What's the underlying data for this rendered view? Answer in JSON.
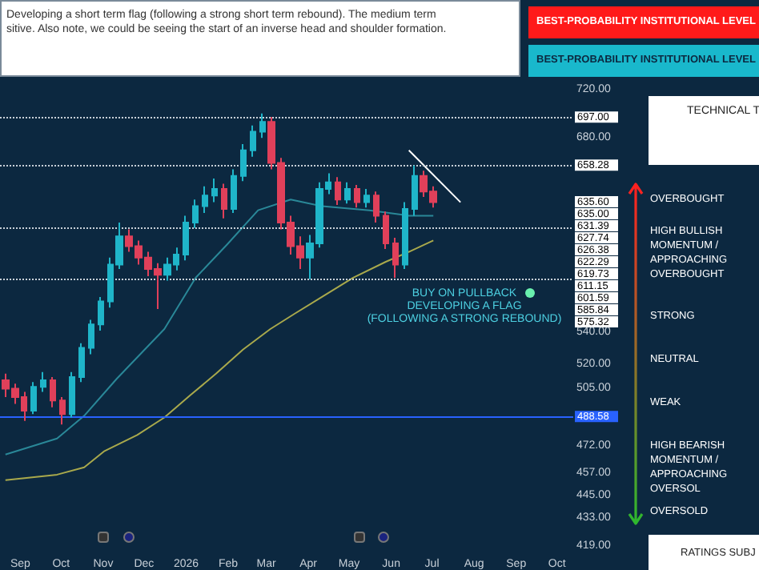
{
  "chart_data": [
    {
      "type": "candlestick",
      "title": "Developing a short term flag (following a strong short term rebound). The medium term",
      "subtitle": "sitive. Also note, we could be seeing the start of an inverse head and shoulder formation.",
      "x": [
        "2025-08-21",
        "2025-08-28",
        "2025-09-04",
        "2025-09-11",
        "2025-09-18",
        "2025-09-25",
        "2025-10-02",
        "2025-10-09",
        "2025-10-16",
        "2025-10-23",
        "2025-10-30",
        "2025-11-06",
        "2025-11-13",
        "2025-11-20",
        "2025-11-27",
        "2025-12-04",
        "2025-12-11",
        "2025-12-18",
        "2025-12-25",
        "2026-01-01",
        "2026-01-08",
        "2026-01-15",
        "2026-01-22",
        "2026-01-29",
        "2026-02-05",
        "2026-02-12",
        "2026-02-19",
        "2026-02-26",
        "2026-03-05",
        "2026-03-12",
        "2026-03-19",
        "2026-03-26",
        "2026-04-02",
        "2026-04-09",
        "2026-04-16",
        "2026-04-23",
        "2026-04-30",
        "2026-05-07",
        "2026-05-14",
        "2026-05-21",
        "2026-05-28",
        "2026-06-04",
        "2026-06-11",
        "2026-06-18",
        "2026-06-25",
        "2026-07-02"
      ],
      "ohlc": [
        [
          510,
          514,
          500,
          505
        ],
        [
          505,
          508,
          496,
          500
        ],
        [
          500,
          503,
          486,
          492
        ],
        [
          492,
          509,
          490,
          506
        ],
        [
          506,
          515,
          503,
          510
        ],
        [
          510,
          512,
          494,
          498
        ],
        [
          498,
          500,
          484,
          490
        ],
        [
          490,
          515,
          488,
          512
        ],
        [
          512,
          533,
          509,
          530
        ],
        [
          530,
          548,
          526,
          545
        ],
        [
          545,
          563,
          541,
          560
        ],
        [
          560,
          590,
          556,
          585
        ],
        [
          585,
          615,
          582,
          605
        ],
        [
          605,
          610,
          594,
          598
        ],
        [
          598,
          602,
          585,
          590
        ],
        [
          590,
          594,
          577,
          582
        ],
        [
          582,
          586,
          555,
          578
        ],
        [
          578,
          590,
          574,
          585
        ],
        [
          585,
          597,
          581,
          592
        ],
        [
          592,
          620,
          588,
          615
        ],
        [
          615,
          632,
          611,
          627
        ],
        [
          627,
          642,
          622,
          635
        ],
        [
          635,
          648,
          630,
          640
        ],
        [
          640,
          644,
          618,
          625
        ],
        [
          625,
          655,
          622,
          650
        ],
        [
          650,
          675,
          646,
          670
        ],
        [
          670,
          690,
          665,
          685
        ],
        [
          685,
          700,
          680,
          693
        ],
        [
          693,
          697,
          655,
          660
        ],
        [
          660,
          664,
          610,
          615
        ],
        [
          615,
          620,
          592,
          598
        ],
        [
          598,
          605,
          582,
          590
        ],
        [
          590,
          606,
          575,
          600
        ],
        [
          600,
          645,
          597,
          640
        ],
        [
          640,
          652,
          636,
          645
        ],
        [
          645,
          649,
          628,
          632
        ],
        [
          632,
          645,
          629,
          640
        ],
        [
          640,
          643,
          626,
          630
        ],
        [
          630,
          640,
          626,
          635
        ],
        [
          635,
          638,
          615,
          620
        ],
        [
          620,
          623,
          596,
          600
        ],
        [
          600,
          604,
          576,
          585
        ],
        [
          585,
          630,
          582,
          625
        ],
        [
          625,
          658,
          620,
          650
        ],
        [
          650,
          654,
          634,
          638
        ],
        [
          638,
          642,
          626,
          630
        ]
      ],
      "colors": [
        "#e0405a",
        "#e0405a",
        "#e0405a",
        "#1fb5c9",
        "#1fb5c9",
        "#e0405a",
        "#e0405a",
        "#1fb5c9",
        "#1fb5c9",
        "#1fb5c9",
        "#1fb5c9",
        "#1fb5c9",
        "#1fb5c9",
        "#e0405a",
        "#e0405a",
        "#e0405a",
        "#e0405a",
        "#1fb5c9",
        "#1fb5c9",
        "#1fb5c9",
        "#1fb5c9",
        "#1fb5c9",
        "#1fb5c9",
        "#e0405a",
        "#1fb5c9",
        "#1fb5c9",
        "#1fb5c9",
        "#1fb5c9",
        "#e0405a",
        "#e0405a",
        "#e0405a",
        "#e0405a",
        "#1fb5c9",
        "#1fb5c9",
        "#1fb5c9",
        "#e0405a",
        "#1fb5c9",
        "#e0405a",
        "#1fb5c9",
        "#e0405a",
        "#e0405a",
        "#e0405a",
        "#1fb5c9",
        "#1fb5c9",
        "#e0405a",
        "#e0405a"
      ],
      "series": [
        {
          "type": "line",
          "color": "#a9a94c",
          "x": [
            "2025-08-21",
            "2025-09-28",
            "2025-10-18",
            "2025-11-02",
            "2025-11-26",
            "2025-12-16",
            "2026-01-04",
            "2026-01-23",
            "2026-02-12",
            "2026-03-04",
            "2026-03-22",
            "2026-04-11",
            "2026-05-04",
            "2026-05-28",
            "2026-06-14",
            "2026-07-02"
          ],
          "values": [
            453,
            456,
            460,
            469,
            478,
            488,
            501,
            514,
            529,
            542,
            552,
            563,
            576,
            587,
            594,
            602
          ]
        },
        {
          "type": "line",
          "color": "#2a8898",
          "x": [
            "2025-08-21",
            "2025-09-28",
            "2025-10-18",
            "2025-11-11",
            "2025-12-16",
            "2026-01-08",
            "2026-01-31",
            "2026-02-23",
            "2026-03-19",
            "2026-04-11",
            "2026-05-16",
            "2026-06-14",
            "2026-07-02"
          ],
          "values": [
            467,
            476,
            489,
            511,
            542,
            576,
            599,
            624,
            632,
            627,
            624,
            620,
            620
          ]
        },
        {
          "type": "line",
          "color": "#ffffff",
          "x": [
            "2026-06-14",
            "2026-07-22"
          ],
          "values": [
            670,
            630
          ]
        }
      ],
      "marker": "none",
      "line_style": "solid",
      "log": true,
      "grid": false,
      "xlim": [
        "2025-08-17",
        "2026-10-13"
      ],
      "xticks": [
        {
          "value": "2025-09-01",
          "label": "Sep"
        },
        {
          "value": "2025-10-01",
          "label": "Oct"
        },
        {
          "value": "2025-11-01",
          "label": "Nov"
        },
        {
          "value": "2025-12-01",
          "label": "Dec"
        },
        {
          "value": "2026-01-01",
          "label": "2026"
        },
        {
          "value": "2026-02-01",
          "label": "Feb"
        },
        {
          "value": "2026-03-01",
          "label": "Mar"
        },
        {
          "value": "2026-04-01",
          "label": "Apr"
        },
        {
          "value": "2026-05-01",
          "label": "May"
        },
        {
          "value": "2026-06-01",
          "label": "Jun"
        },
        {
          "value": "2026-07-01",
          "label": "Jul"
        },
        {
          "value": "2026-08-01",
          "label": "Aug"
        },
        {
          "value": "2026-09-01",
          "label": "Sep"
        },
        {
          "value": "2026-10-01",
          "label": "Oct"
        }
      ],
      "ylim": [
        419,
        720
      ],
      "yticks": [
        {
          "value": 720,
          "label": "720.00"
        },
        {
          "value": 680,
          "label": "680.00"
        },
        {
          "value": 540,
          "label": "540.00"
        },
        {
          "value": 520,
          "label": "520.00"
        },
        {
          "value": 505,
          "label": "505.00"
        },
        {
          "value": 472,
          "label": "472.00"
        },
        {
          "value": 457,
          "label": "457.00"
        },
        {
          "value": 445,
          "label": "445.00"
        },
        {
          "value": 433,
          "label": "433.00"
        },
        {
          "value": 419,
          "label": "419.00"
        }
      ],
      "ref_lines": [
        {
          "axis": "y",
          "value": 697,
          "label": "697.00",
          "color": "#c8d0d8",
          "line_style": "dotted"
        },
        {
          "axis": "y",
          "value": 658.28,
          "label": "658.28",
          "color": "#c8d0d8",
          "line_style": "dotted"
        },
        {
          "axis": "y",
          "value": 611.15,
          "color": "#c8d0d8",
          "line_style": "dotted"
        },
        {
          "axis": "y",
          "value": 575.32,
          "color": "#c8d0d8",
          "line_style": "dotted"
        },
        {
          "axis": "y",
          "value": 488.58,
          "label": "488.58",
          "color": "#2962ff",
          "line_style": "solid"
        }
      ],
      "annotations": [
        "BUY ON PULLBACK",
        "DEVELOPING A FLAG",
        "(FOLLOWING A STRONG REBOUND)",
        "635.60",
        "635.00",
        "631.39",
        "627.74",
        "626.38",
        "622.29",
        "619.73",
        "611.15",
        "601.59",
        "585.84",
        "575.32"
      ]
    },
    {
      "type": "other",
      "annotations": [
        "BEST-PROBABILITY INSTITUTIONAL LEVEL",
        "BEST-PROBABILITY INSTITUTIONAL LEVEL",
        "TECHNICAL T",
        "OVERBOUGHT",
        "HIGH BULLISH MOMENTUM / APPROACHING OVERBOUGHT",
        "STRONG",
        "NEUTRAL",
        "WEAK",
        "HIGH BEARISH MOMENTUM / APPROACHING OVERSOL",
        "OVERSOLD",
        "RATINGS SUBJ"
      ]
    }
  ]
}
